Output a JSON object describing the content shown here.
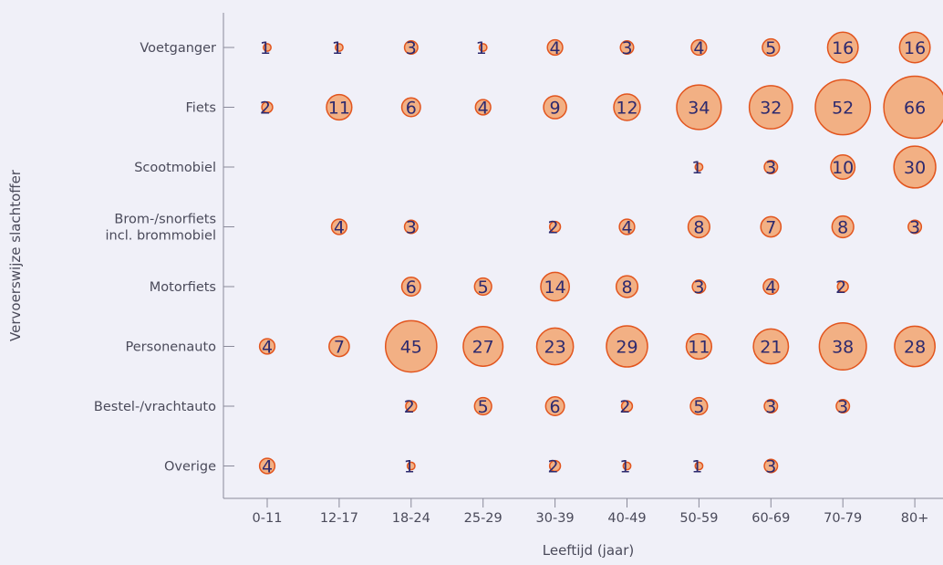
{
  "chart_data": {
    "type": "bubble",
    "xlabel": "Leeftijd (jaar)",
    "ylabel": "Vervoerswijze slachtoffer",
    "categories_x": [
      "0-11",
      "12-17",
      "18-24",
      "25-29",
      "30-39",
      "40-49",
      "50-59",
      "60-69",
      "70-79",
      "80+"
    ],
    "categories_y": [
      "Voetganger",
      "Fiets",
      "Scootmobiel",
      "Brom-/snorfiets incl. brommobiel",
      "Motorfiets",
      "Personenauto",
      "Bestel-/vrachtauto",
      "Overige"
    ],
    "grid": false,
    "colors": {
      "bubble_fill": "#f2b084",
      "bubble_stroke": "#e2551e",
      "label": "#2d2a6e",
      "axis": "#8a8a9a",
      "text": "#4a4a5a"
    },
    "series": [
      {
        "y": "Voetganger",
        "values": [
          1,
          1,
          3,
          1,
          4,
          3,
          4,
          5,
          16,
          16
        ]
      },
      {
        "y": "Fiets",
        "values": [
          2,
          11,
          6,
          4,
          9,
          12,
          34,
          32,
          52,
          66
        ]
      },
      {
        "y": "Scootmobiel",
        "values": [
          null,
          null,
          null,
          null,
          null,
          null,
          1,
          3,
          10,
          30
        ]
      },
      {
        "y": "Brom-/snorfiets incl. brommobiel",
        "values": [
          null,
          4,
          3,
          null,
          2,
          4,
          8,
          7,
          8,
          3
        ]
      },
      {
        "y": "Motorfiets",
        "values": [
          null,
          null,
          6,
          5,
          14,
          8,
          3,
          4,
          2,
          null
        ]
      },
      {
        "y": "Personenauto",
        "values": [
          4,
          7,
          45,
          27,
          23,
          29,
          11,
          21,
          38,
          28
        ]
      },
      {
        "y": "Bestel-/vrachtauto",
        "values": [
          null,
          null,
          2,
          5,
          6,
          2,
          5,
          3,
          3,
          null
        ]
      },
      {
        "y": "Overige",
        "values": [
          4,
          null,
          1,
          null,
          2,
          1,
          1,
          3,
          null,
          null
        ]
      }
    ]
  }
}
